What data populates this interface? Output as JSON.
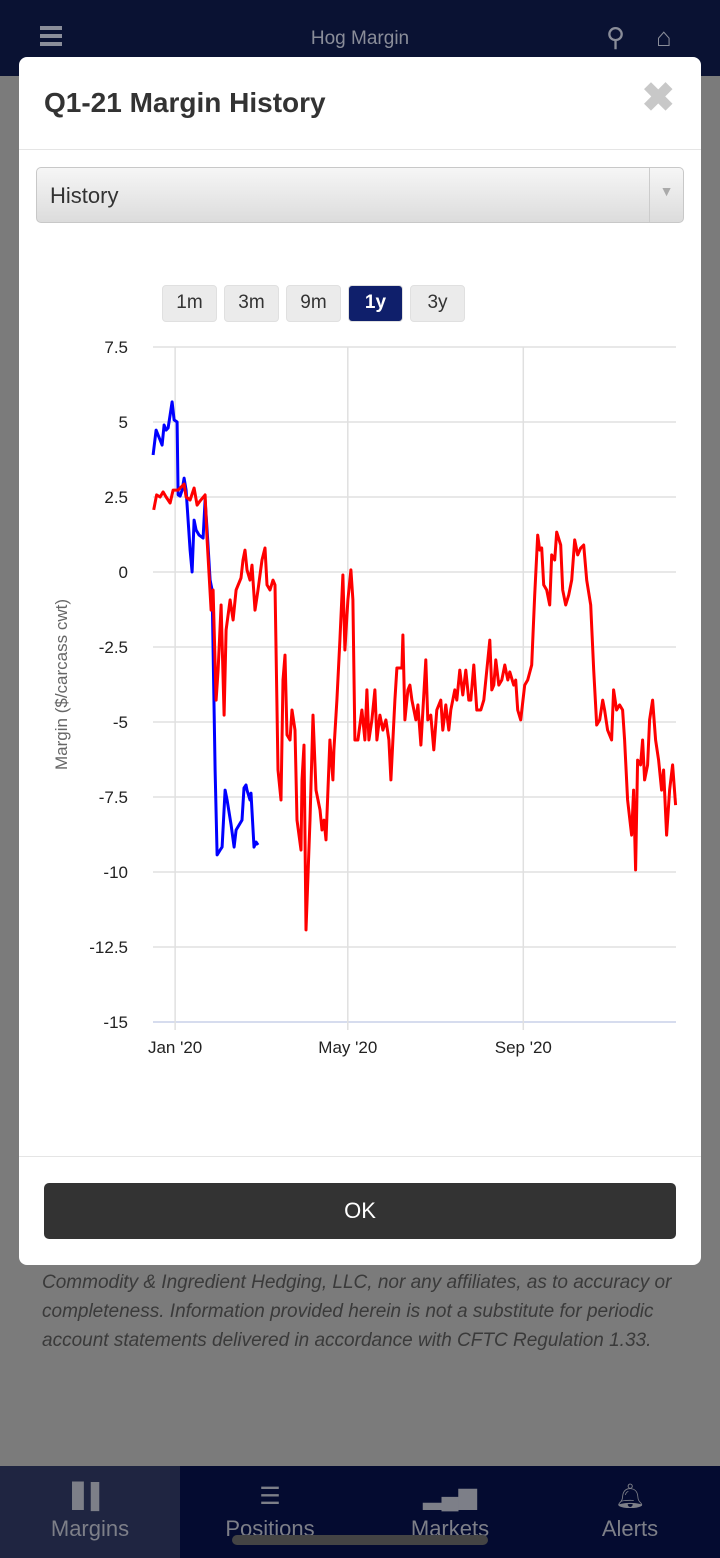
{
  "app": {
    "title": "Hog Margin",
    "menu_icon": "hamburger-icon",
    "search_icon": "search-icon",
    "home_icon": "home-icon"
  },
  "modal": {
    "title": "Q1-21 Margin History",
    "close_icon": "close-icon",
    "select_value": "History",
    "ranges": [
      "1m",
      "3m",
      "9m",
      "1y",
      "3y"
    ],
    "active_range": "1y",
    "ok_label": "OK"
  },
  "disclaimer": "Commodity & Ingredient Hedging, LLC, nor any affiliates, as to accuracy or completeness. Information provided herein is not a substitute for periodic account statements delivered in accordance with CFTC Regulation 1.33.",
  "nav": [
    {
      "label": "Margins",
      "icon": "bar-chart-icon",
      "active": true
    },
    {
      "label": "Positions",
      "icon": "list-icon",
      "active": false
    },
    {
      "label": "Markets",
      "icon": "signal-icon",
      "active": false
    },
    {
      "label": "Alerts",
      "icon": "bell-icon",
      "active": false
    }
  ],
  "chart_data": {
    "type": "line",
    "ylabel": "Margin ($/carcass cwt)",
    "x_unit": "days since 2020-01-01",
    "xlim": [
      -15.5,
      351
    ],
    "ylim": [
      -15,
      7.5
    ],
    "yticks": [
      7.5,
      5,
      2.5,
      0,
      -2.5,
      -5,
      -7.5,
      -10,
      -12.5,
      -15
    ],
    "ytick_labels": [
      "7.5",
      "5",
      "2.5",
      "0",
      "-2.5",
      "-5",
      "-7.5",
      "-10",
      "-12.5",
      "-15"
    ],
    "xticks": [
      {
        "x": 0,
        "label": "Jan '20"
      },
      {
        "x": 121,
        "label": "May '20"
      },
      {
        "x": 244,
        "label": "Sep '20"
      }
    ],
    "grid": true,
    "series": [
      {
        "name": "blue",
        "color": "#0000ff",
        "points": [
          [
            -15.4,
            3.9
          ],
          [
            -13.3,
            4.73
          ],
          [
            -10.5,
            4.4
          ],
          [
            -9.1,
            4.23
          ],
          [
            -7.7,
            4.9
          ],
          [
            -6.3,
            4.73
          ],
          [
            -4.9,
            4.8
          ],
          [
            -3.5,
            5.23
          ],
          [
            -2.1,
            5.67
          ],
          [
            -0.7,
            5.07
          ],
          [
            1.4,
            5.0
          ],
          [
            2.1,
            2.57
          ],
          [
            3.5,
            2.53
          ],
          [
            4.9,
            2.73
          ],
          [
            6.3,
            3.13
          ],
          [
            7.7,
            2.73
          ],
          [
            9.1,
            1.73
          ],
          [
            10.5,
            0.73
          ],
          [
            11.9,
            0
          ],
          [
            13.3,
            1.73
          ],
          [
            14.7,
            1.4
          ],
          [
            16.8,
            1.23
          ],
          [
            19.6,
            1.13
          ],
          [
            21,
            2.4
          ],
          [
            22.4,
            1.4
          ],
          [
            24.5,
            -0.27
          ],
          [
            25.9,
            -0.6
          ],
          [
            28,
            -6.6
          ],
          [
            29.4,
            -9.43
          ],
          [
            31.5,
            -9.27
          ],
          [
            32.9,
            -9.17
          ],
          [
            35,
            -7.27
          ],
          [
            36.4,
            -7.6
          ],
          [
            39.2,
            -8.43
          ],
          [
            41.3,
            -9.17
          ],
          [
            42.7,
            -8.6
          ],
          [
            46.9,
            -8.27
          ],
          [
            48.3,
            -7.2
          ],
          [
            49.7,
            -7.1
          ],
          [
            50.4,
            -7.27
          ],
          [
            52.5,
            -7.6
          ],
          [
            53.2,
            -7.37
          ],
          [
            55.3,
            -9.17
          ],
          [
            56.7,
            -9.0
          ],
          [
            58.1,
            -9.1
          ]
        ]
      },
      {
        "name": "red",
        "color": "#ff0000",
        "points": [
          [
            -15,
            2.07
          ],
          [
            -13,
            2.57
          ],
          [
            -10.5,
            2.5
          ],
          [
            -8.4,
            2.67
          ],
          [
            -6.3,
            2.5
          ],
          [
            -3.5,
            2.3
          ],
          [
            -1.4,
            2.73
          ],
          [
            2.1,
            2.73
          ],
          [
            6.3,
            2.93
          ],
          [
            7.7,
            2.5
          ],
          [
            10.5,
            2.4
          ],
          [
            13.3,
            2.8
          ],
          [
            15.4,
            2.23
          ],
          [
            17.5,
            2.37
          ],
          [
            21,
            2.57
          ],
          [
            22.4,
            1.07
          ],
          [
            25.2,
            -1.27
          ],
          [
            26.6,
            -0.6
          ],
          [
            28.7,
            -4.27
          ],
          [
            30.1,
            -3.27
          ],
          [
            32.2,
            -1.1
          ],
          [
            34.3,
            -4.77
          ],
          [
            35.7,
            -1.93
          ],
          [
            38.5,
            -0.93
          ],
          [
            40.6,
            -1.6
          ],
          [
            42.7,
            -0.6
          ],
          [
            46.2,
            -0.2
          ],
          [
            47.6,
            0.4
          ],
          [
            49,
            0.73
          ],
          [
            50.4,
            0.07
          ],
          [
            52.5,
            -0.27
          ],
          [
            53.9,
            0.23
          ],
          [
            56,
            -1.27
          ],
          [
            58.1,
            -0.6
          ],
          [
            60.9,
            0.4
          ],
          [
            63,
            0.8
          ],
          [
            64.4,
            -0.43
          ],
          [
            66.5,
            -0.6
          ],
          [
            68.6,
            -0.27
          ],
          [
            70,
            -0.43
          ],
          [
            72.1,
            -6.6
          ],
          [
            74.2,
            -7.6
          ],
          [
            75.6,
            -3.6
          ],
          [
            77,
            -2.77
          ],
          [
            78.4,
            -5.43
          ],
          [
            80.5,
            -5.6
          ],
          [
            81.9,
            -4.6
          ],
          [
            84,
            -5.27
          ],
          [
            85.4,
            -8.27
          ],
          [
            88.2,
            -9.27
          ],
          [
            88.9,
            -6.93
          ],
          [
            90.3,
            -5.77
          ],
          [
            91.7,
            -11.93
          ],
          [
            94.5,
            -8.27
          ],
          [
            96.6,
            -4.77
          ],
          [
            98.7,
            -7.27
          ],
          [
            101.5,
            -7.93
          ],
          [
            102.9,
            -8.6
          ],
          [
            104.3,
            -8.27
          ],
          [
            105.7,
            -8.93
          ],
          [
            108.5,
            -5.6
          ],
          [
            110.6,
            -6.93
          ],
          [
            111.3,
            -5.93
          ],
          [
            113.4,
            -4.27
          ],
          [
            115.5,
            -2.27
          ],
          [
            117.6,
            -0.1
          ],
          [
            119,
            -2.6
          ],
          [
            121.1,
            -0.93
          ],
          [
            123.2,
            0.07
          ],
          [
            124.6,
            -0.93
          ],
          [
            126,
            -5.6
          ],
          [
            128.1,
            -5.6
          ],
          [
            130.9,
            -4.6
          ],
          [
            133,
            -5.6
          ],
          [
            134.4,
            -3.93
          ],
          [
            135.8,
            -5.6
          ],
          [
            137.9,
            -4.93
          ],
          [
            140,
            -3.93
          ],
          [
            141.4,
            -5.6
          ],
          [
            143.5,
            -4.77
          ],
          [
            145.6,
            -5.27
          ],
          [
            147.7,
            -4.93
          ],
          [
            149.8,
            -5.6
          ],
          [
            151.2,
            -6.93
          ],
          [
            154,
            -4.27
          ],
          [
            155.4,
            -3.2
          ],
          [
            158.9,
            -3.2
          ],
          [
            159.6,
            -2.1
          ],
          [
            161,
            -4.93
          ],
          [
            163.1,
            -3.93
          ],
          [
            164.5,
            -3.77
          ],
          [
            165.9,
            -4.27
          ],
          [
            168.7,
            -4.93
          ],
          [
            170.1,
            -4.43
          ],
          [
            172.2,
            -5.77
          ],
          [
            175.7,
            -2.93
          ],
          [
            177.1,
            -4.93
          ],
          [
            179.2,
            -4.77
          ],
          [
            181.3,
            -5.93
          ],
          [
            183.4,
            -4.6
          ],
          [
            186.2,
            -4.27
          ],
          [
            187.6,
            -5.27
          ],
          [
            189.7,
            -4.43
          ],
          [
            191.8,
            -5.27
          ],
          [
            193.2,
            -4.6
          ],
          [
            196,
            -3.93
          ],
          [
            197.4,
            -4.27
          ],
          [
            199.5,
            -3.27
          ],
          [
            201.6,
            -4.1
          ],
          [
            203.7,
            -3.27
          ],
          [
            205.8,
            -4.27
          ],
          [
            207.2,
            -4.27
          ],
          [
            209.3,
            -3.1
          ],
          [
            211.4,
            -4.6
          ],
          [
            214.2,
            -4.6
          ],
          [
            216.3,
            -4.27
          ],
          [
            218.4,
            -3.27
          ],
          [
            220.5,
            -2.27
          ],
          [
            221.9,
            -3.93
          ],
          [
            223.3,
            -3.77
          ],
          [
            224.7,
            -2.93
          ],
          [
            226.8,
            -3.77
          ],
          [
            228.9,
            -3.6
          ],
          [
            231,
            -3.1
          ],
          [
            233.1,
            -3.6
          ],
          [
            234.5,
            -3.33
          ],
          [
            237.3,
            -3.77
          ],
          [
            238.7,
            -3.6
          ],
          [
            240.1,
            -4.6
          ],
          [
            242.2,
            -4.93
          ],
          [
            245,
            -3.77
          ],
          [
            247.1,
            -3.6
          ],
          [
            249.9,
            -3.1
          ],
          [
            252,
            -0.77
          ],
          [
            254.1,
            1.23
          ],
          [
            255.5,
            0.73
          ],
          [
            256.9,
            0.8
          ],
          [
            258.3,
            -0.43
          ],
          [
            260.4,
            -0.6
          ],
          [
            262.5,
            -1.1
          ],
          [
            263.9,
            0.57
          ],
          [
            266,
            0.4
          ],
          [
            267.4,
            1.33
          ],
          [
            270.2,
            0.9
          ],
          [
            271.6,
            -0.6
          ],
          [
            273.7,
            -1.1
          ],
          [
            275.8,
            -0.77
          ],
          [
            277.9,
            -0.27
          ],
          [
            280,
            1.07
          ],
          [
            282.1,
            0.57
          ],
          [
            284.2,
            0.8
          ],
          [
            286.3,
            0.9
          ],
          [
            288.4,
            -0.27
          ],
          [
            291.2,
            -1.1
          ],
          [
            293.3,
            -3.27
          ],
          [
            295.4,
            -5.1
          ],
          [
            297.5,
            -4.93
          ],
          [
            299.6,
            -4.27
          ],
          [
            301,
            -4.6
          ],
          [
            303.1,
            -5.27
          ],
          [
            305.9,
            -5.6
          ],
          [
            307.3,
            -3.93
          ],
          [
            309.4,
            -4.6
          ],
          [
            311.5,
            -4.43
          ],
          [
            313.6,
            -4.6
          ],
          [
            315,
            -5.6
          ],
          [
            317.1,
            -7.6
          ],
          [
            319.9,
            -8.77
          ],
          [
            321.3,
            -7.27
          ],
          [
            322.7,
            -9.93
          ],
          [
            324.1,
            -6.27
          ],
          [
            326.2,
            -6.43
          ],
          [
            327.6,
            -5.6
          ],
          [
            329,
            -6.93
          ],
          [
            331.1,
            -6.43
          ],
          [
            332.5,
            -4.93
          ],
          [
            334.6,
            -4.27
          ],
          [
            336.7,
            -5.6
          ],
          [
            338.8,
            -6.27
          ],
          [
            340.9,
            -7.27
          ],
          [
            342.3,
            -6.6
          ],
          [
            344.4,
            -8.77
          ],
          [
            346.5,
            -7.27
          ],
          [
            348.6,
            -6.43
          ],
          [
            350.7,
            -7.77
          ]
        ]
      }
    ]
  }
}
